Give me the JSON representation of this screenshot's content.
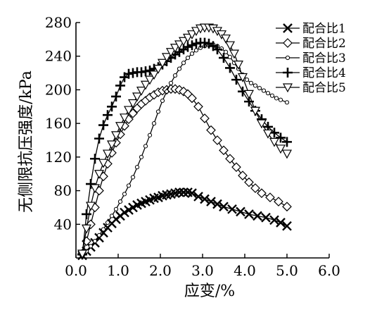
{
  "chart_data": {
    "type": "line",
    "title": "",
    "xlabel": "应变/%",
    "ylabel": "无侧限抗压强度/kPa",
    "xlim": [
      0,
      6
    ],
    "ylim": [
      0,
      280
    ],
    "x_ticks": [
      0.0,
      1.0,
      2.0,
      3.0,
      4.0,
      5.0,
      6.0
    ],
    "x_tick_labels": [
      "0.0",
      "1.0",
      "2.0",
      "3.0",
      "4.0",
      "5.0",
      "6.0"
    ],
    "y_ticks": [
      40,
      80,
      120,
      160,
      200,
      240,
      280
    ],
    "y_tick_labels": [
      "40",
      "80",
      "120",
      "160",
      "200",
      "240",
      "280"
    ],
    "grid": false,
    "legend_position": "top-right",
    "series": [
      {
        "name": "配合比1",
        "marker": "x-cross",
        "x": [
          0.15,
          0.25,
          0.35,
          0.45,
          0.55,
          0.65,
          0.75,
          0.85,
          0.95,
          1.05,
          1.15,
          1.25,
          1.35,
          1.45,
          1.55,
          1.65,
          1.75,
          1.85,
          1.95,
          2.05,
          2.15,
          2.25,
          2.35,
          2.45,
          2.55,
          2.65,
          2.75,
          2.9,
          3.05,
          3.2,
          3.35,
          3.5,
          3.7,
          3.9,
          4.1,
          4.3,
          4.5,
          4.7,
          4.85,
          5.0
        ],
        "y": [
          3,
          8,
          13,
          18,
          24,
          30,
          36,
          41,
          46,
          50,
          54,
          57,
          60,
          63,
          65,
          67,
          69,
          71,
          72,
          74,
          75,
          76,
          77,
          78,
          78,
          78,
          77,
          73,
          70,
          67,
          64,
          61,
          58,
          55,
          52,
          50,
          48,
          45,
          42,
          38
        ]
      },
      {
        "name": "配合比2",
        "marker": "diamond",
        "x": [
          0.15,
          0.25,
          0.35,
          0.45,
          0.55,
          0.65,
          0.75,
          0.85,
          0.95,
          1.05,
          1.15,
          1.25,
          1.35,
          1.45,
          1.55,
          1.65,
          1.75,
          1.85,
          1.95,
          2.05,
          2.15,
          2.25,
          2.35,
          2.45,
          2.55,
          2.65,
          2.75,
          2.9,
          3.05,
          3.2,
          3.35,
          3.5,
          3.65,
          3.8,
          3.95,
          4.1,
          4.25,
          4.4,
          4.6,
          4.8,
          5.0
        ],
        "y": [
          5,
          20,
          40,
          60,
          80,
          97,
          112,
          125,
          137,
          147,
          157,
          165,
          172,
          178,
          183,
          187,
          191,
          194,
          197,
          199,
          200,
          201,
          201,
          200,
          198,
          195,
          190,
          180,
          166,
          152,
          140,
          128,
          118,
          108,
          98,
          90,
          83,
          77,
          72,
          67,
          61
        ]
      },
      {
        "name": "配合比3",
        "marker": "circle",
        "x": [
          0.15,
          0.25,
          0.35,
          0.45,
          0.55,
          0.65,
          0.75,
          0.85,
          0.95,
          1.05,
          1.15,
          1.25,
          1.35,
          1.45,
          1.55,
          1.65,
          1.75,
          1.85,
          1.95,
          2.05,
          2.15,
          2.25,
          2.35,
          2.45,
          2.55,
          2.65,
          2.75,
          2.85,
          2.95,
          3.05,
          3.15,
          3.25,
          3.35,
          3.45,
          3.55,
          3.65,
          3.75,
          3.85,
          3.95,
          4.05,
          4.15,
          4.25,
          4.35,
          4.45,
          4.55,
          4.65,
          4.75,
          4.85,
          5.0
        ],
        "y": [
          3,
          8,
          14,
          20,
          27,
          34,
          42,
          50,
          58,
          67,
          76,
          86,
          96,
          108,
          120,
          133,
          146,
          160,
          174,
          187,
          198,
          208,
          217,
          225,
          232,
          238,
          243,
          247,
          250,
          252,
          253,
          254,
          252,
          249,
          245,
          239,
          232,
          225,
          218,
          212,
          208,
          205,
          202,
          199,
          196,
          193,
          190,
          188,
          185
        ]
      },
      {
        "name": "配合比4",
        "marker": "plus",
        "x": [
          0.15,
          0.25,
          0.35,
          0.45,
          0.55,
          0.65,
          0.75,
          0.85,
          0.95,
          1.05,
          1.15,
          1.25,
          1.35,
          1.45,
          1.55,
          1.65,
          1.75,
          1.85,
          1.95,
          2.05,
          2.15,
          2.25,
          2.35,
          2.45,
          2.55,
          2.65,
          2.75,
          2.85,
          2.95,
          3.05,
          3.15,
          3.25,
          3.35,
          3.5,
          3.65,
          3.8,
          3.95,
          4.1,
          4.25,
          4.4,
          4.55,
          4.7,
          4.85,
          5.0
        ],
        "y": [
          4,
          52,
          88,
          118,
          142,
          158,
          170,
          180,
          192,
          205,
          215,
          219,
          220,
          221,
          221,
          222,
          223,
          225,
          227,
          230,
          234,
          238,
          242,
          245,
          248,
          251,
          253,
          255,
          256,
          256,
          255,
          252,
          248,
          238,
          226,
          212,
          198,
          186,
          175,
          165,
          156,
          149,
          143,
          138
        ]
      },
      {
        "name": "配合比5",
        "marker": "triangle-down",
        "x": [
          0.15,
          0.25,
          0.35,
          0.45,
          0.55,
          0.65,
          0.75,
          0.85,
          0.95,
          1.05,
          1.15,
          1.25,
          1.35,
          1.45,
          1.55,
          1.65,
          1.75,
          1.85,
          1.95,
          2.05,
          2.15,
          2.25,
          2.35,
          2.45,
          2.55,
          2.65,
          2.75,
          2.85,
          2.95,
          3.05,
          3.15,
          3.25,
          3.35,
          3.45,
          3.55,
          3.65,
          3.75,
          3.85,
          3.95,
          4.1,
          4.25,
          4.4,
          4.55,
          4.7,
          4.85,
          5.0
        ],
        "y": [
          5,
          35,
          62,
          83,
          100,
          113,
          124,
          135,
          146,
          157,
          167,
          176,
          184,
          192,
          199,
          206,
          212,
          218,
          225,
          232,
          239,
          245,
          250,
          254,
          258,
          262,
          266,
          270,
          273,
          274,
          274,
          273,
          270,
          266,
          261,
          253,
          243,
          230,
          215,
          195,
          175,
          160,
          148,
          138,
          130,
          124
        ]
      }
    ]
  }
}
